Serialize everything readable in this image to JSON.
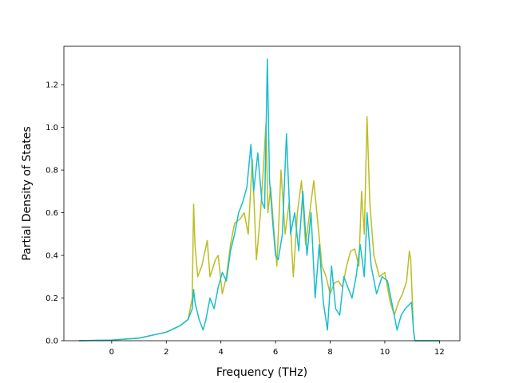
{
  "chart_data": {
    "type": "line",
    "xlabel": "Frequency (THz)",
    "ylabel": "Partial Density of States",
    "xlim": [
      -1.75,
      12.75
    ],
    "ylim": [
      0,
      1.38
    ],
    "xticks": [
      0,
      2,
      4,
      6,
      8,
      10,
      12
    ],
    "yticks": [
      0.0,
      0.2,
      0.4,
      0.6,
      0.8,
      1.0,
      1.2
    ],
    "xtick_labels": [
      "0",
      "2",
      "4",
      "6",
      "8",
      "10",
      "12"
    ],
    "ytick_labels": [
      "0.0",
      "0.2",
      "0.4",
      "0.6",
      "0.8",
      "1.0",
      "1.2"
    ],
    "grid": false,
    "legend": "none",
    "series": [
      {
        "color": "#bcbd22",
        "x": [
          -1.2,
          0,
          1,
          2,
          2.5,
          2.8,
          2.95,
          3.0,
          3.05,
          3.15,
          3.3,
          3.5,
          3.6,
          3.8,
          3.9,
          4.05,
          4.2,
          4.35,
          4.5,
          4.7,
          4.85,
          5.0,
          5.15,
          5.3,
          5.45,
          5.55,
          5.65,
          5.72,
          5.82,
          5.95,
          6.05,
          6.2,
          6.35,
          6.5,
          6.65,
          6.8,
          6.95,
          7.1,
          7.25,
          7.4,
          7.55,
          7.7,
          7.85,
          8.0,
          8.15,
          8.3,
          8.45,
          8.6,
          8.75,
          8.9,
          9.05,
          9.15,
          9.25,
          9.35,
          9.45,
          9.6,
          9.8,
          10.0,
          10.2,
          10.35,
          10.5,
          10.65,
          10.8,
          10.9,
          10.95,
          11.05,
          11.1,
          12.0
        ],
        "values": [
          0,
          0.003,
          0.012,
          0.04,
          0.07,
          0.1,
          0.2,
          0.64,
          0.45,
          0.3,
          0.35,
          0.47,
          0.3,
          0.38,
          0.4,
          0.22,
          0.3,
          0.45,
          0.55,
          0.57,
          0.6,
          0.5,
          0.85,
          0.38,
          0.6,
          0.8,
          1.02,
          0.6,
          0.72,
          0.5,
          0.35,
          0.8,
          0.5,
          0.65,
          0.3,
          0.6,
          0.75,
          0.45,
          0.6,
          0.75,
          0.55,
          0.35,
          0.3,
          0.22,
          0.27,
          0.28,
          0.25,
          0.35,
          0.42,
          0.43,
          0.35,
          0.7,
          0.5,
          1.05,
          0.65,
          0.4,
          0.3,
          0.32,
          0.18,
          0.12,
          0.18,
          0.22,
          0.28,
          0.42,
          0.38,
          0.05,
          0,
          0
        ]
      },
      {
        "color": "#17becf",
        "x": [
          -1.2,
          0,
          1,
          2,
          2.5,
          2.8,
          2.95,
          3.0,
          3.05,
          3.2,
          3.35,
          3.45,
          3.6,
          3.75,
          3.9,
          4.05,
          4.2,
          4.35,
          4.5,
          4.65,
          4.8,
          4.95,
          5.1,
          5.2,
          5.35,
          5.5,
          5.6,
          5.7,
          5.78,
          5.9,
          6.0,
          6.1,
          6.25,
          6.4,
          6.55,
          6.7,
          6.85,
          7.0,
          7.15,
          7.3,
          7.45,
          7.6,
          7.75,
          7.9,
          8.05,
          8.2,
          8.35,
          8.5,
          8.65,
          8.8,
          8.95,
          9.1,
          9.25,
          9.35,
          9.5,
          9.7,
          9.9,
          10.1,
          10.3,
          10.45,
          10.6,
          10.75,
          10.9,
          10.98,
          11.05,
          11.1,
          12.0
        ],
        "values": [
          0,
          0.003,
          0.012,
          0.04,
          0.07,
          0.1,
          0.15,
          0.24,
          0.18,
          0.1,
          0.05,
          0.1,
          0.2,
          0.15,
          0.25,
          0.32,
          0.28,
          0.42,
          0.5,
          0.6,
          0.65,
          0.72,
          0.92,
          0.7,
          0.88,
          0.65,
          0.62,
          1.32,
          0.75,
          0.55,
          0.4,
          0.38,
          0.5,
          0.97,
          0.5,
          0.6,
          0.42,
          0.7,
          0.4,
          0.6,
          0.2,
          0.45,
          0.18,
          0.05,
          0.35,
          0.15,
          0.12,
          0.3,
          0.25,
          0.2,
          0.3,
          0.45,
          0.3,
          0.6,
          0.35,
          0.22,
          0.3,
          0.28,
          0.15,
          0.05,
          0.12,
          0.15,
          0.17,
          0.18,
          0.05,
          0,
          0
        ]
      }
    ]
  }
}
